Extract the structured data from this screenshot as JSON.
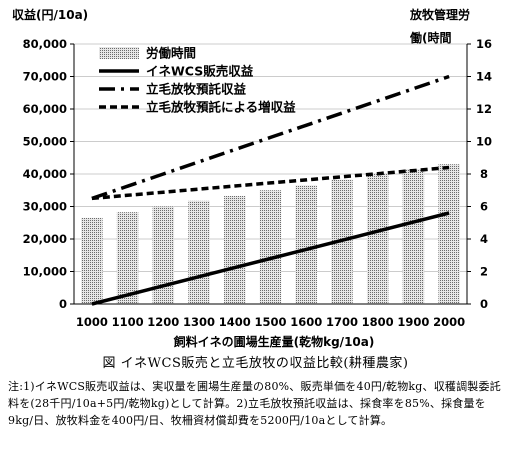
{
  "chart_data": {
    "type": "bar+line",
    "left_axis_label": "収益(円/10a)",
    "right_axis_label_line1": "放牧管理労",
    "right_axis_label_line2": "働(時間",
    "xlabel": "飼料イネの圃場生産量(乾物kg/10a)",
    "categories": [
      "1000",
      "1100",
      "1200",
      "1300",
      "1400",
      "1500",
      "1600",
      "1700",
      "1800",
      "1900",
      "2000"
    ],
    "y_left": {
      "min": 0,
      "max": 80000,
      "step": 10000,
      "ticks": [
        "0",
        "10,000",
        "20,000",
        "30,000",
        "40,000",
        "50,000",
        "60,000",
        "70,000",
        "80,000"
      ]
    },
    "y_right": {
      "min": 0,
      "max": 16,
      "step": 2,
      "ticks": [
        "0",
        "2",
        "4",
        "6",
        "8",
        "10",
        "12",
        "14",
        "16"
      ]
    },
    "bars": {
      "name": "労働時間",
      "axis": "right",
      "values": [
        5.3,
        5.65,
        6.0,
        6.35,
        6.65,
        7.0,
        7.3,
        7.65,
        8.0,
        8.3,
        8.6
      ]
    },
    "series": [
      {
        "name": "イネWCS販売収益",
        "style": "solid",
        "axis": "left",
        "values": [
          0,
          2800,
          5600,
          8400,
          11200,
          14000,
          16800,
          19600,
          22400,
          25200,
          28000
        ]
      },
      {
        "name": "立毛放牧預託収益",
        "style": "dashdot",
        "axis": "left",
        "values": [
          32500,
          36250,
          40000,
          43750,
          47500,
          51250,
          55000,
          58750,
          62500,
          66250,
          70000
        ]
      },
      {
        "name": "立毛放牧預託による増収益",
        "style": "dashed",
        "axis": "left",
        "values": [
          32500,
          33450,
          34400,
          35350,
          36300,
          37250,
          38200,
          39150,
          40100,
          41050,
          42000
        ]
      }
    ],
    "legend_position": "top-left"
  },
  "caption": "図 イネWCS販売と立毛放牧の収益比較(耕種農家)",
  "note": "注:1)イネWCS販売収益は、実収量を圃場生産量の80%、販売単価を40円/乾物kg、収穫調製委託料を(28千円/10a+5円/乾物kg)として計算。2)立毛放牧預託収益は、採食率を85%、採食量を9kg/日、放牧料金を400円/日、牧柵資材償却費を5200円/10aとして計算。",
  "colors": {
    "bar_fill": "#d9d9d9",
    "bar_dot": "#555555",
    "line": "#000000",
    "grid": "#000000"
  }
}
